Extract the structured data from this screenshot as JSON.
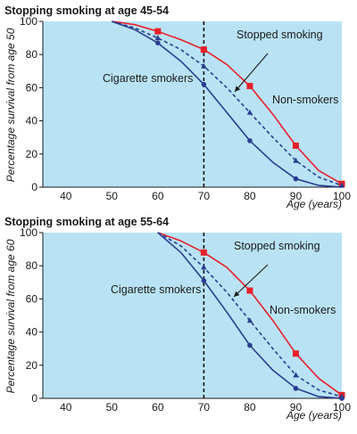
{
  "y_axis_labels": [
    "Percentage survival from age 50",
    "Percentage survival from age 60"
  ],
  "chart_data": [
    {
      "type": "line",
      "title": "Stopping smoking at age 45-54",
      "xlabel": "Age (years)",
      "ylabel": "Percentage survival from age 50",
      "xlim": [
        35,
        100
      ],
      "ylim": [
        0,
        100
      ],
      "x_ticks": [
        40,
        50,
        60,
        70,
        80,
        90,
        100
      ],
      "y_ticks": [
        0,
        20,
        40,
        60,
        80,
        100
      ],
      "grid": false,
      "reference_line_x": 70,
      "series": [
        {
          "name": "Non-smokers",
          "color": "#e8202a",
          "marker": "square",
          "dash": false,
          "x": [
            50,
            55,
            60,
            65,
            70,
            75,
            80,
            85,
            90,
            95,
            100
          ],
          "y": [
            100,
            98,
            94,
            89,
            83,
            74,
            61,
            44,
            25,
            10,
            2
          ],
          "markers_at": [
            60,
            70,
            80,
            90,
            100
          ]
        },
        {
          "name": "Stopped smoking",
          "color": "#2a3d8f",
          "marker": "triangle",
          "dash": true,
          "x": [
            50,
            55,
            60,
            65,
            70,
            75,
            80,
            85,
            90,
            95,
            100
          ],
          "y": [
            100,
            96,
            90,
            83,
            73,
            60,
            45,
            30,
            16,
            6,
            1
          ],
          "markers_at": [
            60,
            70,
            80,
            90,
            100
          ]
        },
        {
          "name": "Cigarette smokers",
          "color": "#2a3d8f",
          "marker": "circle",
          "dash": false,
          "x": [
            50,
            55,
            60,
            65,
            70,
            75,
            80,
            85,
            90,
            95,
            100
          ],
          "y": [
            100,
            95,
            87,
            76,
            62,
            45,
            28,
            15,
            5,
            1,
            0
          ],
          "markers_at": [
            60,
            70,
            80,
            90
          ]
        }
      ],
      "annotations": [
        {
          "text": "Stopped smoking",
          "target_series": "Stopped smoking"
        },
        {
          "text": "Non-smokers",
          "target_series": "Non-smokers"
        },
        {
          "text": "Cigarette smokers",
          "target_series": "Cigarette smokers"
        }
      ]
    },
    {
      "type": "line",
      "title": "Stopping smoking at age 55-64",
      "xlabel": "Age (years)",
      "ylabel": "Percentage survival from age 60",
      "xlim": [
        35,
        100
      ],
      "ylim": [
        0,
        100
      ],
      "x_ticks": [
        40,
        50,
        60,
        70,
        80,
        90,
        100
      ],
      "y_ticks": [
        0,
        20,
        40,
        60,
        80,
        100
      ],
      "grid": false,
      "reference_line_x": 70,
      "series": [
        {
          "name": "Non-smokers",
          "color": "#e8202a",
          "marker": "square",
          "dash": false,
          "x": [
            60,
            65,
            70,
            75,
            80,
            85,
            90,
            95,
            100
          ],
          "y": [
            100,
            95,
            88,
            79,
            65,
            47,
            27,
            12,
            2
          ],
          "markers_at": [
            70,
            80,
            90,
            100
          ]
        },
        {
          "name": "Stopped smoking",
          "color": "#2a3d8f",
          "marker": "triangle",
          "dash": true,
          "x": [
            60,
            65,
            70,
            75,
            80,
            85,
            90,
            95,
            100
          ],
          "y": [
            100,
            92,
            79,
            64,
            47,
            30,
            14,
            5,
            1
          ],
          "markers_at": [
            70,
            80,
            90,
            100
          ]
        },
        {
          "name": "Cigarette smokers",
          "color": "#2a3d8f",
          "marker": "circle",
          "dash": false,
          "x": [
            60,
            65,
            70,
            75,
            80,
            85,
            90,
            95,
            100
          ],
          "y": [
            100,
            88,
            71,
            52,
            32,
            17,
            6,
            1,
            0
          ],
          "markers_at": [
            70,
            80,
            90,
            100
          ]
        }
      ],
      "annotations": [
        {
          "text": "Stopped smoking",
          "target_series": "Stopped smoking"
        },
        {
          "text": "Non-smokers",
          "target_series": "Non-smokers"
        },
        {
          "text": "Cigarette smokers",
          "target_series": "Cigarette smokers"
        }
      ]
    }
  ]
}
